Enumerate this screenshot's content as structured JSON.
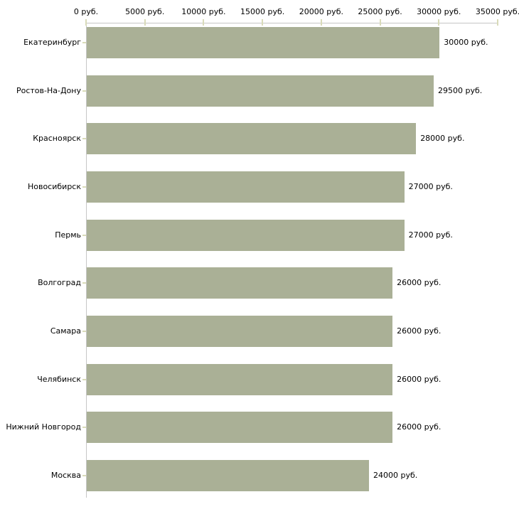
{
  "chart_data": {
    "type": "bar",
    "orientation": "horizontal",
    "title": "",
    "xlabel": "",
    "ylabel": "",
    "unit": "руб.",
    "categories": [
      "Екатеринбург",
      "Ростов-На-Дону",
      "Красноярск",
      "Новосибирск",
      "Пермь",
      "Волгоград",
      "Самара",
      "Челябинск",
      "Нижний Новгород",
      "Москва"
    ],
    "values": [
      30000,
      29500,
      28000,
      27000,
      27000,
      26000,
      26000,
      26000,
      26000,
      24000
    ],
    "value_labels": [
      "30000 руб.",
      "29500 руб.",
      "28000 руб.",
      "27000 руб.",
      "27000 руб.",
      "26000 руб.",
      "26000 руб.",
      "26000 руб.",
      "26000 руб.",
      "24000 руб."
    ],
    "xlim": [
      0,
      35000
    ],
    "x_ticks": [
      0,
      5000,
      10000,
      15000,
      20000,
      25000,
      30000,
      35000
    ],
    "x_tick_labels": [
      "0 руб.",
      "5000 руб.",
      "10000 руб.",
      "15000 руб.",
      "20000 руб.",
      "25000 руб.",
      "30000 руб.",
      "35000 руб."
    ],
    "axis_position": "top",
    "grid": false,
    "legend": false,
    "colors": {
      "bar": "#aab096",
      "axis": "#c6c6c6",
      "tick": "#d9dbb9",
      "text": "#000000",
      "background": "#ffffff"
    }
  }
}
